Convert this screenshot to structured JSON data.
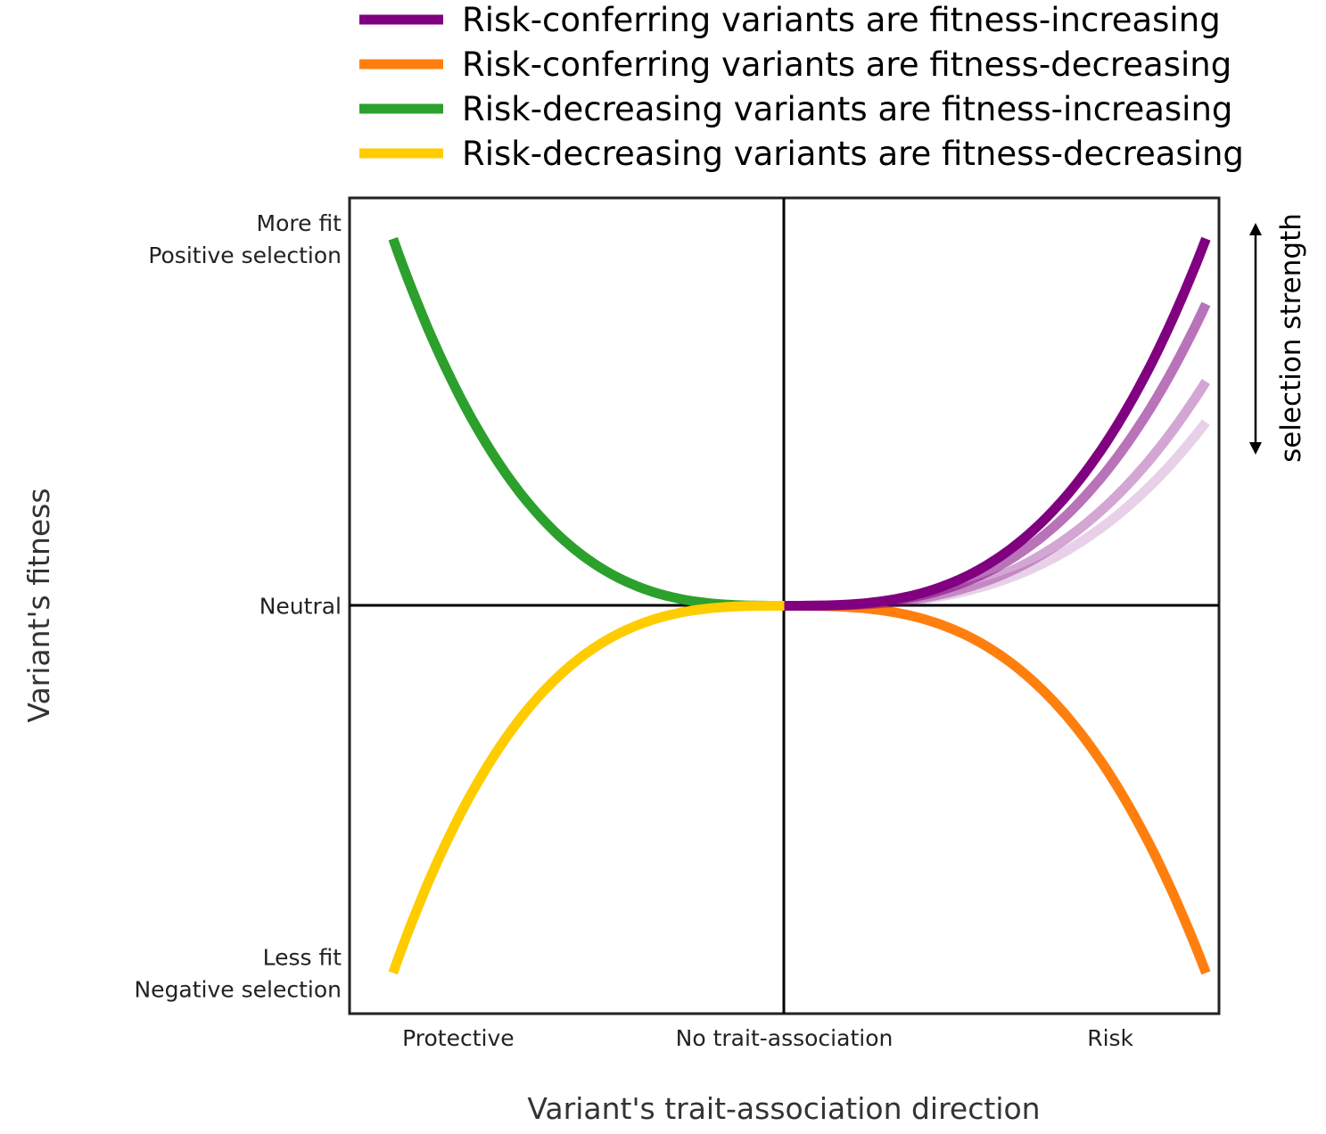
{
  "chart_data": {
    "type": "line",
    "xlabel": "Variant's trait-association direction",
    "ylabel": "Variant's fitness",
    "xlim": [
      -1,
      1
    ],
    "ylim": [
      -1,
      1
    ],
    "x_tick_labels": [
      {
        "x": -0.75,
        "label": "Protective"
      },
      {
        "x": 0,
        "label": "No trait-association"
      },
      {
        "x": 0.75,
        "label": "Risk"
      }
    ],
    "y_tick_labels": [
      {
        "y": 0.9,
        "lines": [
          "More fit",
          "Positive selection"
        ]
      },
      {
        "y": 0,
        "lines": [
          "Neutral"
        ]
      },
      {
        "y": -0.9,
        "lines": [
          "Less fit",
          "Negative selection"
        ]
      }
    ],
    "strength_annotation": "selection strength",
    "legend": [
      {
        "label": "Risk-conferring variants are fitness-increasing",
        "color": "#800080"
      },
      {
        "label": "Risk-conferring variants are fitness-decreasing",
        "color": "#ff7f0e"
      },
      {
        "label": "Risk-decreasing variants are fitness-increasing",
        "color": "#2ca02c"
      },
      {
        "label": "Risk-decreasing variants are fitness-decreasing",
        "color": "#ffcc00"
      }
    ],
    "series": [
      {
        "color": "#2ca02c",
        "x_range": [
          -0.9,
          0
        ],
        "end_y": 0.9,
        "exponent": 3,
        "opacity": 1
      },
      {
        "color": "#ffcc00",
        "x_range": [
          -0.9,
          0
        ],
        "end_y": -0.9,
        "exponent": 3,
        "opacity": 1
      },
      {
        "color": "#ff7f0e",
        "x_range": [
          0,
          0.97
        ],
        "end_y": -0.9,
        "exponent": 3,
        "opacity": 1
      },
      {
        "color": "#800080",
        "x_range": [
          0,
          0.97
        ],
        "end_y": 0.45,
        "exponent": 3,
        "opacity": 0.18
      },
      {
        "color": "#800080",
        "x_range": [
          0,
          0.97
        ],
        "end_y": 0.55,
        "exponent": 3,
        "opacity": 0.35
      },
      {
        "color": "#800080",
        "x_range": [
          0,
          0.97
        ],
        "end_y": 0.74,
        "exponent": 3,
        "opacity": 0.55
      },
      {
        "color": "#800080",
        "x_range": [
          0,
          0.97
        ],
        "end_y": 0.9,
        "exponent": 3,
        "opacity": 1
      }
    ]
  }
}
